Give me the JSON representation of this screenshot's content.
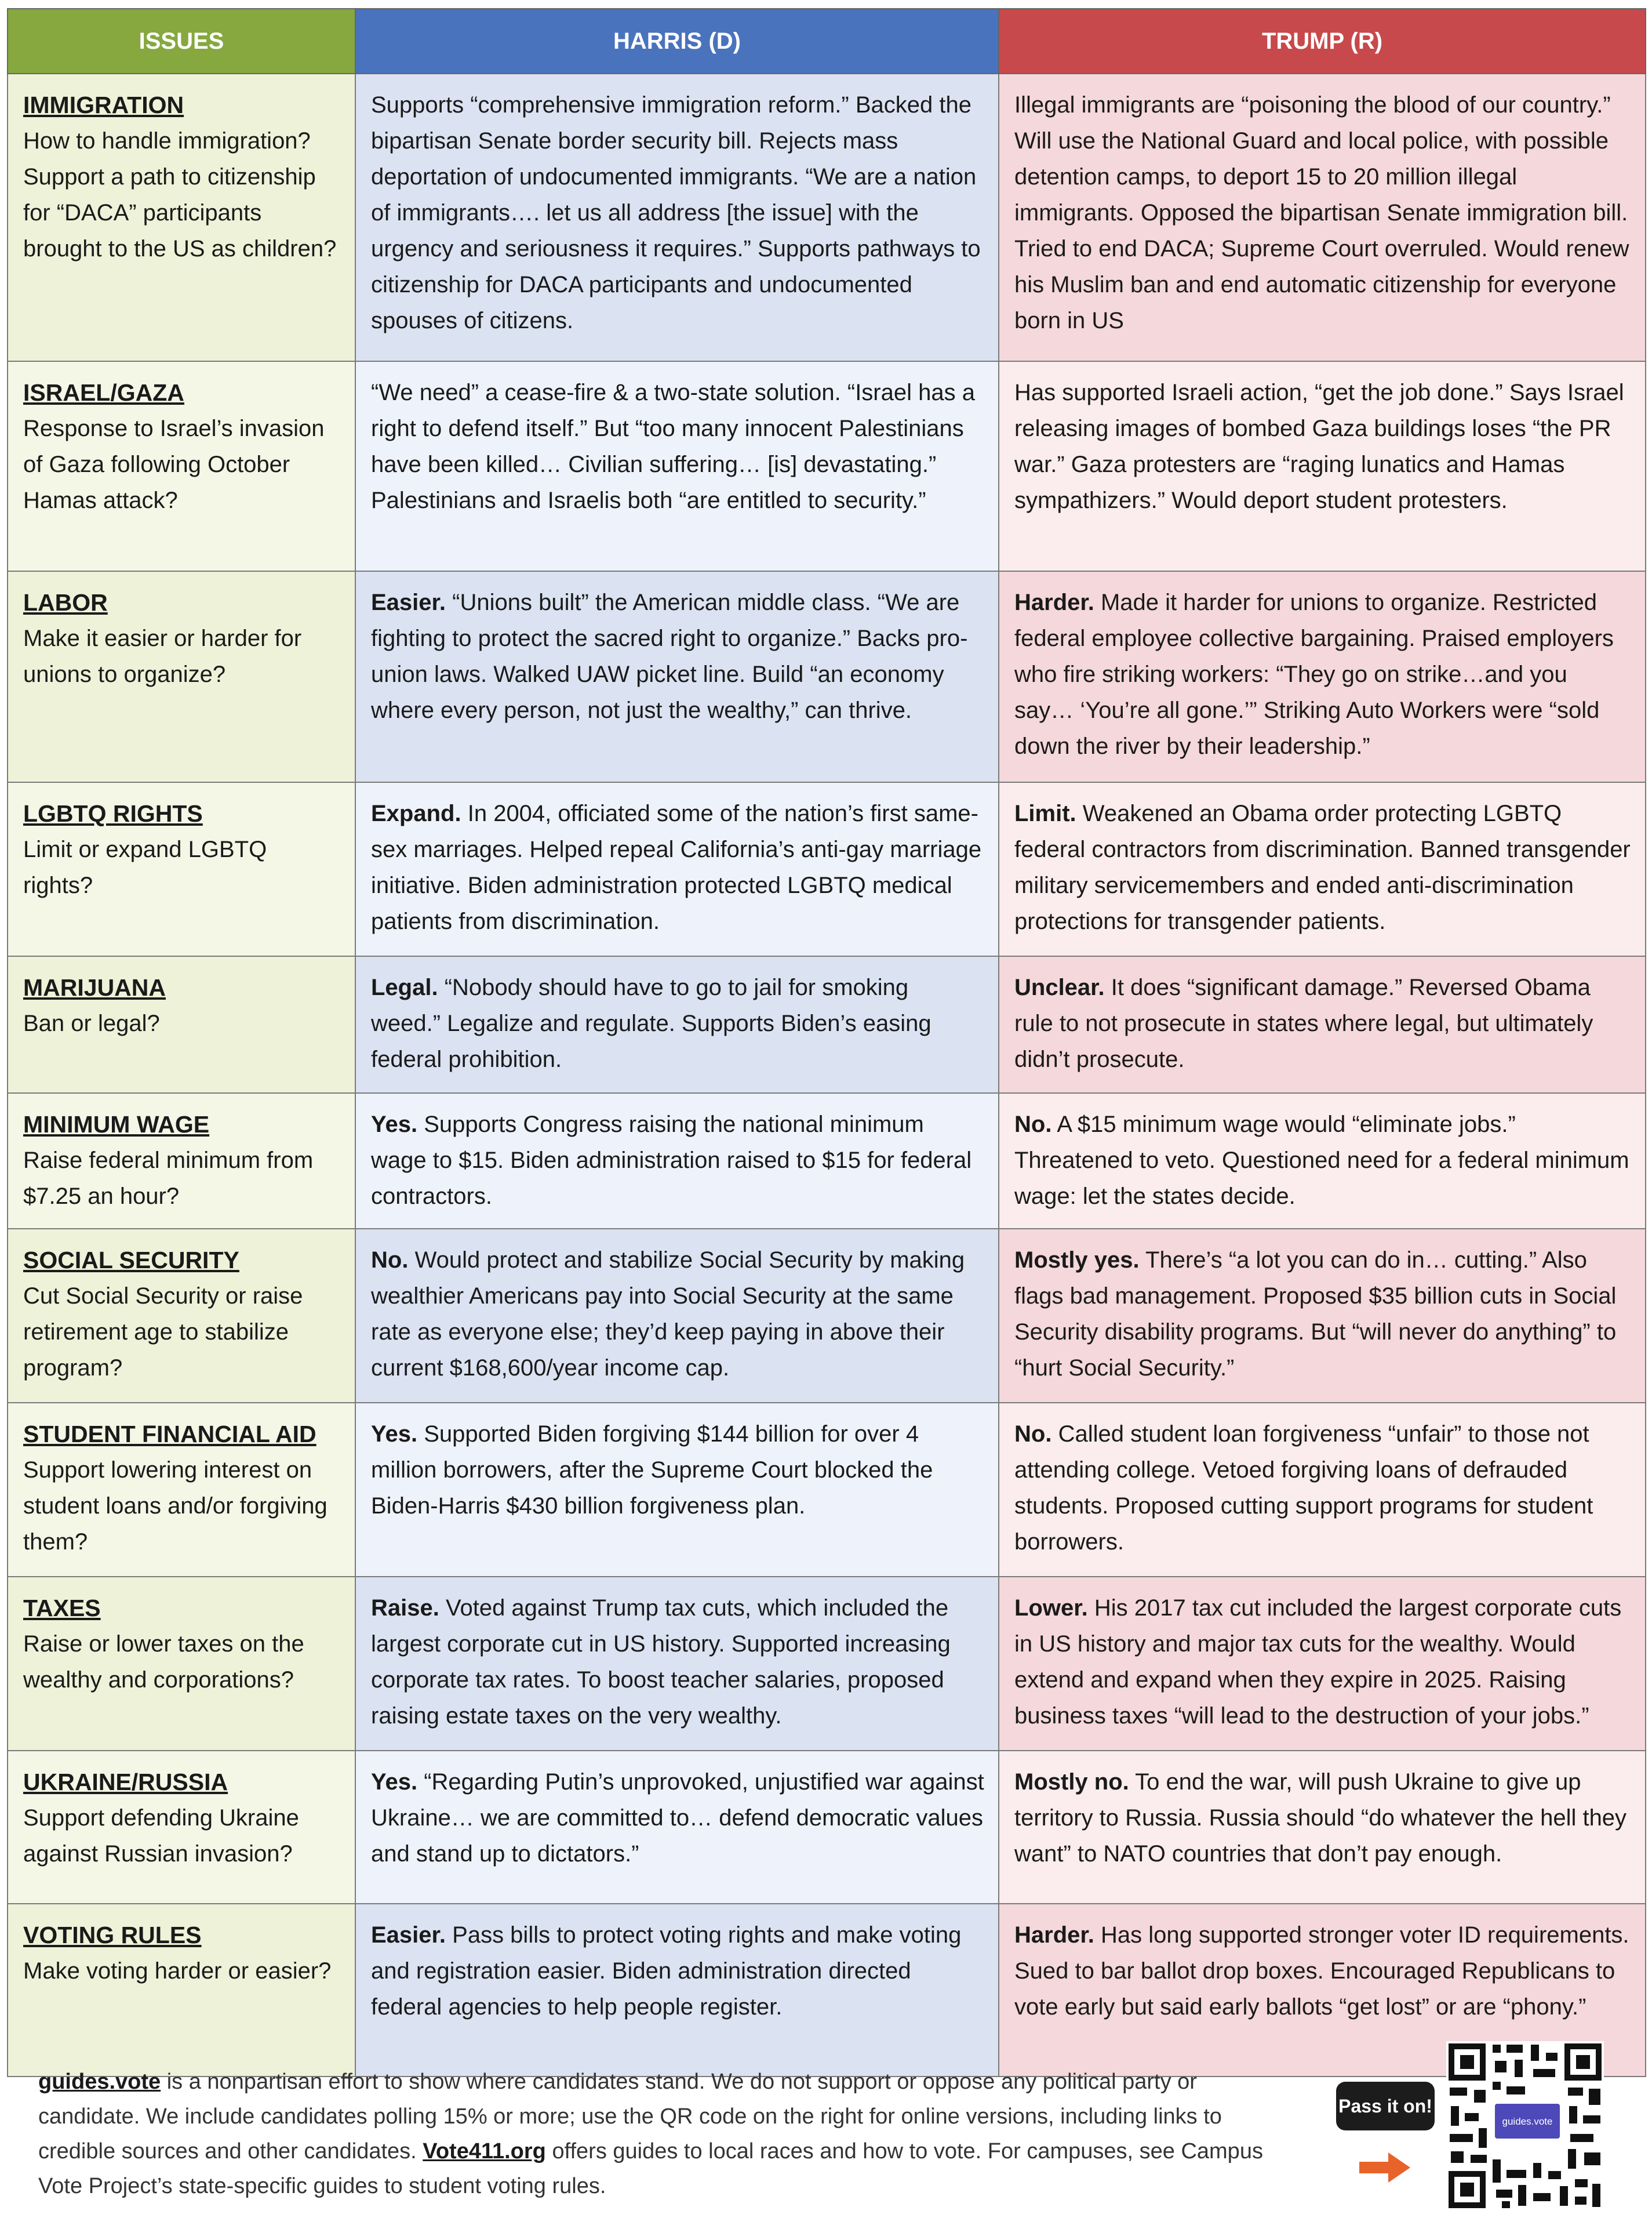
{
  "header": {
    "issues": "ISSUES",
    "harris": "HARRIS (D)",
    "trump": "TRUMP (R)"
  },
  "colors": {
    "issues_header": "#86a83f",
    "harris_header": "#4a73bd",
    "trump_header": "#c8494b",
    "issues_cell": "#eef2d8",
    "harris_cell": "#dbe3f2",
    "trump_cell": "#f5d8db",
    "arrow": "#e8632a"
  },
  "rows": [
    {
      "name": "IMMIGRATION",
      "question": "How to handle immigration? Support a path to citizenship for “DACA” participants brought to the US as children?",
      "harris_lead": "",
      "harris_text": "Supports “comprehensive immigration reform.” Backed the bipartisan Senate border security bill. Rejects mass deportation of undocumented immigrants. “We are a nation of immigrants…. let us all address [the issue] with the urgency and seriousness it requires.” Supports pathways to citizenship for DACA participants and undocumented spouses of citizens.",
      "trump_lead": "",
      "trump_text": "Illegal immigrants are “poisoning the blood of our country.” Will use the National Guard and local police, with possible detention camps, to deport 15 to 20 million illegal immigrants. Opposed the bipartisan Senate immigration bill. Tried to end DACA; Supreme Court overruled. Would renew his Muslim ban and end automatic citizenship for everyone born in US"
    },
    {
      "name": "ISRAEL/GAZA",
      "question": "Response to Israel’s invasion of Gaza following October Hamas attack?",
      "harris_lead": "",
      "harris_text": "“We need” a cease-fire & a two-state solution. “Israel has a right to defend itself.” But “too many innocent Palestinians have been killed… Civilian suffering… [is] devastating.” Palestinians and Israelis both “are entitled to security.”",
      "trump_lead": "",
      "trump_text": "Has supported Israeli action, “get the job done.” Says Israel releasing images of bombed Gaza buildings loses “the PR war.” Gaza protesters are “raging lunatics and Hamas sympathizers.” Would deport student protesters."
    },
    {
      "name": "LABOR",
      "question": "Make it easier or harder for unions to organize?",
      "harris_lead": "Easier.",
      "harris_text": "“Unions built” the American middle class. “We are fighting to protect the sacred right to organize.” Backs pro-union laws. Walked UAW picket line. Build “an economy where every person, not just the wealthy,” can thrive.",
      "trump_lead": "Harder.",
      "trump_text": "Made it harder for unions to organize. Restricted federal employee collective bargaining. Praised employers who fire striking workers: “They go on strike…and you say… ‘You’re all gone.’” Striking Auto Workers were “sold down the river by their leadership.”"
    },
    {
      "name": "LGBTQ RIGHTS",
      "question": "Limit or expand LGBTQ rights?",
      "harris_lead": "Expand.",
      "harris_text": "In 2004, officiated some of the nation’s first same-sex marriages. Helped repeal California’s anti-gay marriage initiative. Biden administration protected LGBTQ medical patients from discrimination.",
      "trump_lead": "Limit.",
      "trump_text": "Weakened an Obama order protecting LGBTQ federal contractors from discrimination. Banned transgender military servicemembers and ended anti-discrimination protections for transgender patients."
    },
    {
      "name": "MARIJUANA",
      "question": "Ban or legal?",
      "harris_lead": "Legal.",
      "harris_text": "“Nobody should have to go to jail for smoking weed.” Legalize and regulate. Supports Biden’s easing federal prohibition.",
      "trump_lead": "Unclear.",
      "trump_text": "It does “significant damage.” Reversed Obama rule to not prosecute in states where legal, but ultimately didn’t prosecute."
    },
    {
      "name": "MINIMUM WAGE",
      "question": "Raise federal minimum from $7.25 an hour?",
      "harris_lead": "Yes.",
      "harris_text": "Supports Congress raising the national minimum wage to $15. Biden administration raised to $15 for federal contractors.",
      "trump_lead": "No.",
      "trump_text": "A $15 minimum wage would “eliminate jobs.” Threatened to veto. Questioned need for a federal minimum wage: let the states decide."
    },
    {
      "name": "SOCIAL SECURITY",
      "question": "Cut Social Security or raise retirement age to stabilize program?",
      "harris_lead": "No.",
      "harris_text": "Would protect and stabilize Social Security by making wealthier Americans pay into Social Security at the same rate as everyone else; they’d keep paying in above their current $168,600/year income cap.",
      "trump_lead": "Mostly yes.",
      "trump_text": "There’s “a lot you can do in… cutting.” Also flags bad management. Proposed $35 billion cuts in Social Security disability programs. But “will never do anything” to “hurt Social Security.”"
    },
    {
      "name": "STUDENT FINANCIAL AID",
      "question": "Support lowering interest on student loans and/or forgiving them?",
      "harris_lead": "Yes.",
      "harris_text": "Supported Biden forgiving $144 billion for over 4 million borrowers, after the Supreme Court blocked the Biden-Harris $430 billion forgiveness plan.",
      "trump_lead": "No.",
      "trump_text": "Called student loan forgiveness “unfair” to those not attending college. Vetoed forgiving loans of defrauded students. Proposed cutting support programs for student borrowers."
    },
    {
      "name": "TAXES",
      "question": "Raise or lower taxes on the wealthy and corporations?",
      "harris_lead": "Raise.",
      "harris_text": "Voted against Trump tax cuts, which included the largest corporate cut in US history. Supported increasing corporate tax rates. To boost teacher salaries, proposed raising estate taxes on the very wealthy.",
      "trump_lead": "Lower.",
      "trump_text": "His 2017 tax cut included the largest corporate cuts in US history and major tax cuts for the wealthy. Would extend and expand when they expire in 2025. Raising business taxes “will lead to the destruction of your jobs.”"
    },
    {
      "name": "UKRAINE/RUSSIA",
      "question": "Support defending Ukraine against Russian invasion?",
      "harris_lead": "Yes.",
      "harris_text": "“Regarding Putin’s unprovoked, unjustified war against Ukraine… we are committed to… defend democratic values and stand up to dictators.”",
      "trump_lead": "Mostly no.",
      "trump_text": "To end the war, will push Ukraine to give up territory to Russia. Russia should “do whatever the hell they want” to NATO countries that don’t pay enough."
    },
    {
      "name": "VOTING RULES",
      "question": "Make voting harder or easier?",
      "harris_lead": "Easier.",
      "harris_text": "Pass bills to protect voting rights and make voting and registration easier. Biden administration directed federal agencies to help people register.",
      "trump_lead": "Harder.",
      "trump_text": "Has long supported stronger voter ID requirements. Sued to bar ballot drop boxes. Encouraged Republicans to vote early but said early ballots “get lost” or are “phony.”"
    }
  ],
  "footer": {
    "site_link": "guides.vote",
    "text1": " is a nonpartisan effort to show where candidates stand. We do not support or oppose any political party or candidate. We include candidates polling 15% or more; use the QR code on the right for online versions, including links to credible sources and other candidates. ",
    "vote_link": "Vote411.org",
    "text2": " offers guides to local races and how to vote. For campuses, see Campus Vote Project’s state-specific guides to student voting rules.",
    "pass_it_on": "Pass it on!",
    "qr_logo": "guides.vote"
  },
  "icons": [
    "arrow-right-icon",
    "qr-code-icon"
  ]
}
